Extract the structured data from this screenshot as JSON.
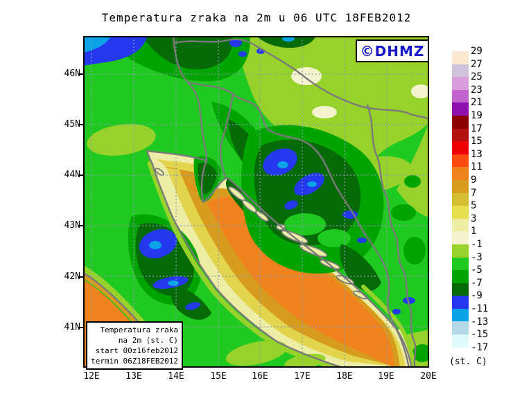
{
  "title": "Temperatura zraka na 2m u 06 UTC 18FEB2012",
  "logo": {
    "text": "©DHMZ",
    "color": "#1717C8"
  },
  "info_box": {
    "lines": [
      "Temperatura zraka",
      "na 2m (st. C)",
      "start 00z16feb2012",
      "termin 06Z18FEB2012"
    ]
  },
  "axes": {
    "lat_labels": [
      "46N",
      "45N",
      "44N",
      "43N",
      "42N",
      "41N"
    ],
    "lon_labels": [
      "12E",
      "13E",
      "14E",
      "15E",
      "16E",
      "17E",
      "18E",
      "19E",
      "20E"
    ]
  },
  "colorbar": {
    "unit": "(st. C)",
    "boundary_labels": [
      "29",
      "27",
      "25",
      "23",
      "21",
      "19",
      "17",
      "15",
      "13",
      "11",
      "9",
      "7",
      "5",
      "3",
      "1",
      "-1",
      "-3",
      "-5",
      "-7",
      "-9",
      "-11",
      "-13",
      "-15",
      "-17"
    ],
    "cell_colors": [
      "#FCE9D2",
      "#CFC3DC",
      "#D99EDB",
      "#C363CE",
      "#8C0FAE",
      "#8C0000",
      "#B51010",
      "#EE0000",
      "#FB4A0E",
      "#F0831E",
      "#D79C1E",
      "#D4BE31",
      "#E6DF4E",
      "#EDEDA6",
      "#F3F4CD",
      "#97D22B",
      "#1FC91F",
      "#00A400",
      "#066B06",
      "#2438EE",
      "#0AA3E8",
      "#B3D9E8",
      "#DFFBFB"
    ]
  },
  "palette": {
    "orange": "#F0831E",
    "mustard": "#D79C1E",
    "yellow": "#E2D44C",
    "paleyellow": "#EDEDA6",
    "verypale": "#F3F4CD",
    "yellowgreen": "#97D22B",
    "brightgreen": "#1FC91F",
    "green": "#00A400",
    "darkgreen": "#066B06",
    "royal": "#2438EE",
    "azure": "#0AA3E8",
    "bordergray": "#7A7A7A",
    "grid": "#8C9BB0",
    "logo": "#1717C8"
  }
}
